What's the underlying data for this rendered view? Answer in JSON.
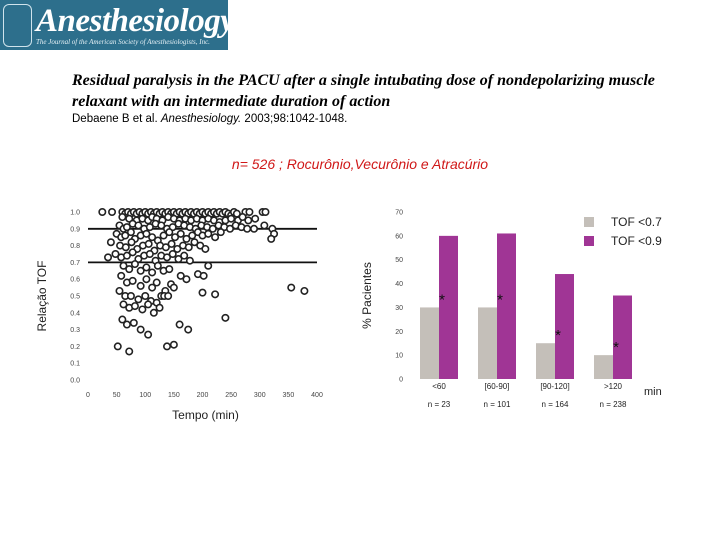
{
  "header": {
    "logo_text": "Anesthesiology",
    "logo_subtitle": "The Journal of the American Society of Anesthesiologists, Inc.",
    "title": "Residual paralysis in the PACU after a single intubating dose of nondepolarizing muscle relaxant with an intermediate duration of action",
    "citation_authors": "Debaene B et al.",
    "citation_journal": "Anesthesiology.",
    "citation_ref": "2003;98:1042-1048.",
    "subtitle": "n= 526 ; Rocurônio,Vecurônio e Atracúrio"
  },
  "chart_data": [
    {
      "type": "scatter",
      "title": "",
      "xlabel": "Tempo (min)",
      "ylabel": "Relação TOF",
      "xlim": [
        0,
        400
      ],
      "ylim": [
        0,
        1.0
      ],
      "x_ticks": [
        "0",
        "50",
        "100",
        "150",
        "200",
        "250",
        "300",
        "350",
        "400"
      ],
      "y_ticks": [
        "0.0",
        "0.1",
        "0.2",
        "0.3",
        "0.4",
        "0.5",
        "0.6",
        "0.7",
        "0.8",
        "0.9",
        "1.0"
      ],
      "reference_lines": [
        0.9,
        0.7
      ],
      "points": [
        [
          25,
          1.0
        ],
        [
          42,
          1.0
        ],
        [
          60,
          1.0
        ],
        [
          65,
          0.99
        ],
        [
          70,
          1.0
        ],
        [
          75,
          0.99
        ],
        [
          80,
          1.0
        ],
        [
          85,
          0.99
        ],
        [
          90,
          1.0
        ],
        [
          95,
          0.99
        ],
        [
          100,
          1.0
        ],
        [
          105,
          0.99
        ],
        [
          110,
          1.0
        ],
        [
          115,
          0.99
        ],
        [
          120,
          1.0
        ],
        [
          125,
          0.99
        ],
        [
          130,
          1.0
        ],
        [
          135,
          0.99
        ],
        [
          140,
          1.0
        ],
        [
          145,
          0.99
        ],
        [
          150,
          1.0
        ],
        [
          155,
          0.99
        ],
        [
          160,
          1.0
        ],
        [
          165,
          0.99
        ],
        [
          170,
          1.0
        ],
        [
          175,
          0.99
        ],
        [
          180,
          1.0
        ],
        [
          185,
          0.99
        ],
        [
          190,
          1.0
        ],
        [
          195,
          0.99
        ],
        [
          200,
          1.0
        ],
        [
          205,
          0.99
        ],
        [
          210,
          1.0
        ],
        [
          215,
          0.99
        ],
        [
          220,
          1.0
        ],
        [
          225,
          0.99
        ],
        [
          230,
          1.0
        ],
        [
          235,
          0.99
        ],
        [
          240,
          1.0
        ],
        [
          245,
          0.99
        ],
        [
          250,
          0.98
        ],
        [
          255,
          1.0
        ],
        [
          260,
          0.99
        ],
        [
          275,
          1.0
        ],
        [
          282,
          1.0
        ],
        [
          305,
          1.0
        ],
        [
          310,
          1.0
        ],
        [
          60,
          0.97
        ],
        [
          72,
          0.96
        ],
        [
          85,
          0.95
        ],
        [
          95,
          0.96
        ],
        [
          105,
          0.95
        ],
        [
          112,
          0.97
        ],
        [
          120,
          0.96
        ],
        [
          130,
          0.95
        ],
        [
          140,
          0.97
        ],
        [
          150,
          0.96
        ],
        [
          160,
          0.95
        ],
        [
          170,
          0.96
        ],
        [
          180,
          0.95
        ],
        [
          190,
          0.96
        ],
        [
          200,
          0.95
        ],
        [
          210,
          0.96
        ],
        [
          220,
          0.95
        ],
        [
          230,
          0.94
        ],
        [
          240,
          0.95
        ],
        [
          250,
          0.96
        ],
        [
          262,
          0.95
        ],
        [
          270,
          0.97
        ],
        [
          280,
          0.95
        ],
        [
          292,
          0.96
        ],
        [
          55,
          0.92
        ],
        [
          62,
          0.9
        ],
        [
          68,
          0.91
        ],
        [
          78,
          0.93
        ],
        [
          88,
          0.92
        ],
        [
          98,
          0.9
        ],
        [
          108,
          0.91
        ],
        [
          118,
          0.93
        ],
        [
          128,
          0.92
        ],
        [
          138,
          0.9
        ],
        [
          148,
          0.91
        ],
        [
          158,
          0.93
        ],
        [
          168,
          0.92
        ],
        [
          178,
          0.91
        ],
        [
          188,
          0.9
        ],
        [
          198,
          0.92
        ],
        [
          208,
          0.91
        ],
        [
          218,
          0.9
        ],
        [
          228,
          0.92
        ],
        [
          238,
          0.91
        ],
        [
          248,
          0.9
        ],
        [
          258,
          0.92
        ],
        [
          268,
          0.91
        ],
        [
          278,
          0.9
        ],
        [
          290,
          0.9
        ],
        [
          308,
          0.92
        ],
        [
          322,
          0.9
        ],
        [
          325,
          0.87
        ],
        [
          320,
          0.84
        ],
        [
          50,
          0.87
        ],
        [
          58,
          0.85
        ],
        [
          65,
          0.86
        ],
        [
          75,
          0.88
        ],
        [
          82,
          0.84
        ],
        [
          92,
          0.86
        ],
        [
          102,
          0.87
        ],
        [
          112,
          0.85
        ],
        [
          122,
          0.83
        ],
        [
          132,
          0.86
        ],
        [
          142,
          0.88
        ],
        [
          152,
          0.85
        ],
        [
          162,
          0.87
        ],
        [
          172,
          0.84
        ],
        [
          182,
          0.86
        ],
        [
          192,
          0.88
        ],
        [
          200,
          0.86
        ],
        [
          210,
          0.87
        ],
        [
          222,
          0.85
        ],
        [
          232,
          0.88
        ],
        [
          40,
          0.82
        ],
        [
          56,
          0.8
        ],
        [
          66,
          0.79
        ],
        [
          76,
          0.82
        ],
        [
          86,
          0.78
        ],
        [
          96,
          0.8
        ],
        [
          106,
          0.81
        ],
        [
          116,
          0.77
        ],
        [
          126,
          0.8
        ],
        [
          136,
          0.79
        ],
        [
          146,
          0.81
        ],
        [
          156,
          0.78
        ],
        [
          166,
          0.8
        ],
        [
          176,
          0.79
        ],
        [
          186,
          0.82
        ],
        [
          196,
          0.8
        ],
        [
          205,
          0.78
        ],
        [
          48,
          0.75
        ],
        [
          58,
          0.73
        ],
        [
          68,
          0.74
        ],
        [
          78,
          0.76
        ],
        [
          88,
          0.72
        ],
        [
          98,
          0.74
        ],
        [
          108,
          0.75
        ],
        [
          118,
          0.71
        ],
        [
          128,
          0.74
        ],
        [
          138,
          0.73
        ],
        [
          148,
          0.75
        ],
        [
          158,
          0.72
        ],
        [
          168,
          0.74
        ],
        [
          178,
          0.71
        ],
        [
          35,
          0.73
        ],
        [
          62,
          0.68
        ],
        [
          72,
          0.66
        ],
        [
          82,
          0.69
        ],
        [
          92,
          0.65
        ],
        [
          102,
          0.67
        ],
        [
          112,
          0.64
        ],
        [
          122,
          0.68
        ],
        [
          132,
          0.65
        ],
        [
          142,
          0.66
        ],
        [
          162,
          0.62
        ],
        [
          172,
          0.6
        ],
        [
          192,
          0.63
        ],
        [
          202,
          0.62
        ],
        [
          210,
          0.68
        ],
        [
          58,
          0.62
        ],
        [
          68,
          0.58
        ],
        [
          78,
          0.59
        ],
        [
          92,
          0.56
        ],
        [
          102,
          0.6
        ],
        [
          112,
          0.55
        ],
        [
          120,
          0.58
        ],
        [
          135,
          0.53
        ],
        [
          145,
          0.57
        ],
        [
          150,
          0.55
        ],
        [
          55,
          0.53
        ],
        [
          65,
          0.5
        ],
        [
          75,
          0.5
        ],
        [
          88,
          0.48
        ],
        [
          100,
          0.5
        ],
        [
          110,
          0.47
        ],
        [
          120,
          0.46
        ],
        [
          128,
          0.5
        ],
        [
          133,
          0.5
        ],
        [
          140,
          0.5
        ],
        [
          62,
          0.45
        ],
        [
          72,
          0.43
        ],
        [
          82,
          0.44
        ],
        [
          95,
          0.42
        ],
        [
          105,
          0.45
        ],
        [
          115,
          0.4
        ],
        [
          125,
          0.43
        ],
        [
          60,
          0.36
        ],
        [
          68,
          0.33
        ],
        [
          80,
          0.34
        ],
        [
          92,
          0.3
        ],
        [
          105,
          0.27
        ],
        [
          160,
          0.33
        ],
        [
          175,
          0.3
        ],
        [
          240,
          0.37
        ],
        [
          52,
          0.2
        ],
        [
          72,
          0.17
        ],
        [
          138,
          0.2
        ],
        [
          150,
          0.21
        ],
        [
          355,
          0.55
        ],
        [
          378,
          0.53
        ],
        [
          200,
          0.52
        ],
        [
          222,
          0.51
        ]
      ]
    },
    {
      "type": "bar",
      "title": "",
      "xlabel": "min",
      "ylabel": "% Pacientes",
      "ylim": [
        0,
        70
      ],
      "y_ticks": [
        "0",
        "10",
        "20",
        "30",
        "40",
        "50",
        "60",
        "70"
      ],
      "categories": [
        "<60",
        "[60-90]",
        "[90-120]",
        ">120"
      ],
      "category_n": [
        "n = 23",
        "n = 101",
        "n = 164",
        "n = 238"
      ],
      "series": [
        {
          "name": "TOF <0.7",
          "color": "#c4bfb9",
          "values": [
            30,
            30,
            15,
            10
          ]
        },
        {
          "name": "TOF <0.9",
          "color": "#a03595",
          "values": [
            60,
            61,
            44,
            35
          ]
        }
      ],
      "annotations": [
        "*",
        "*",
        "*",
        "*"
      ]
    }
  ]
}
